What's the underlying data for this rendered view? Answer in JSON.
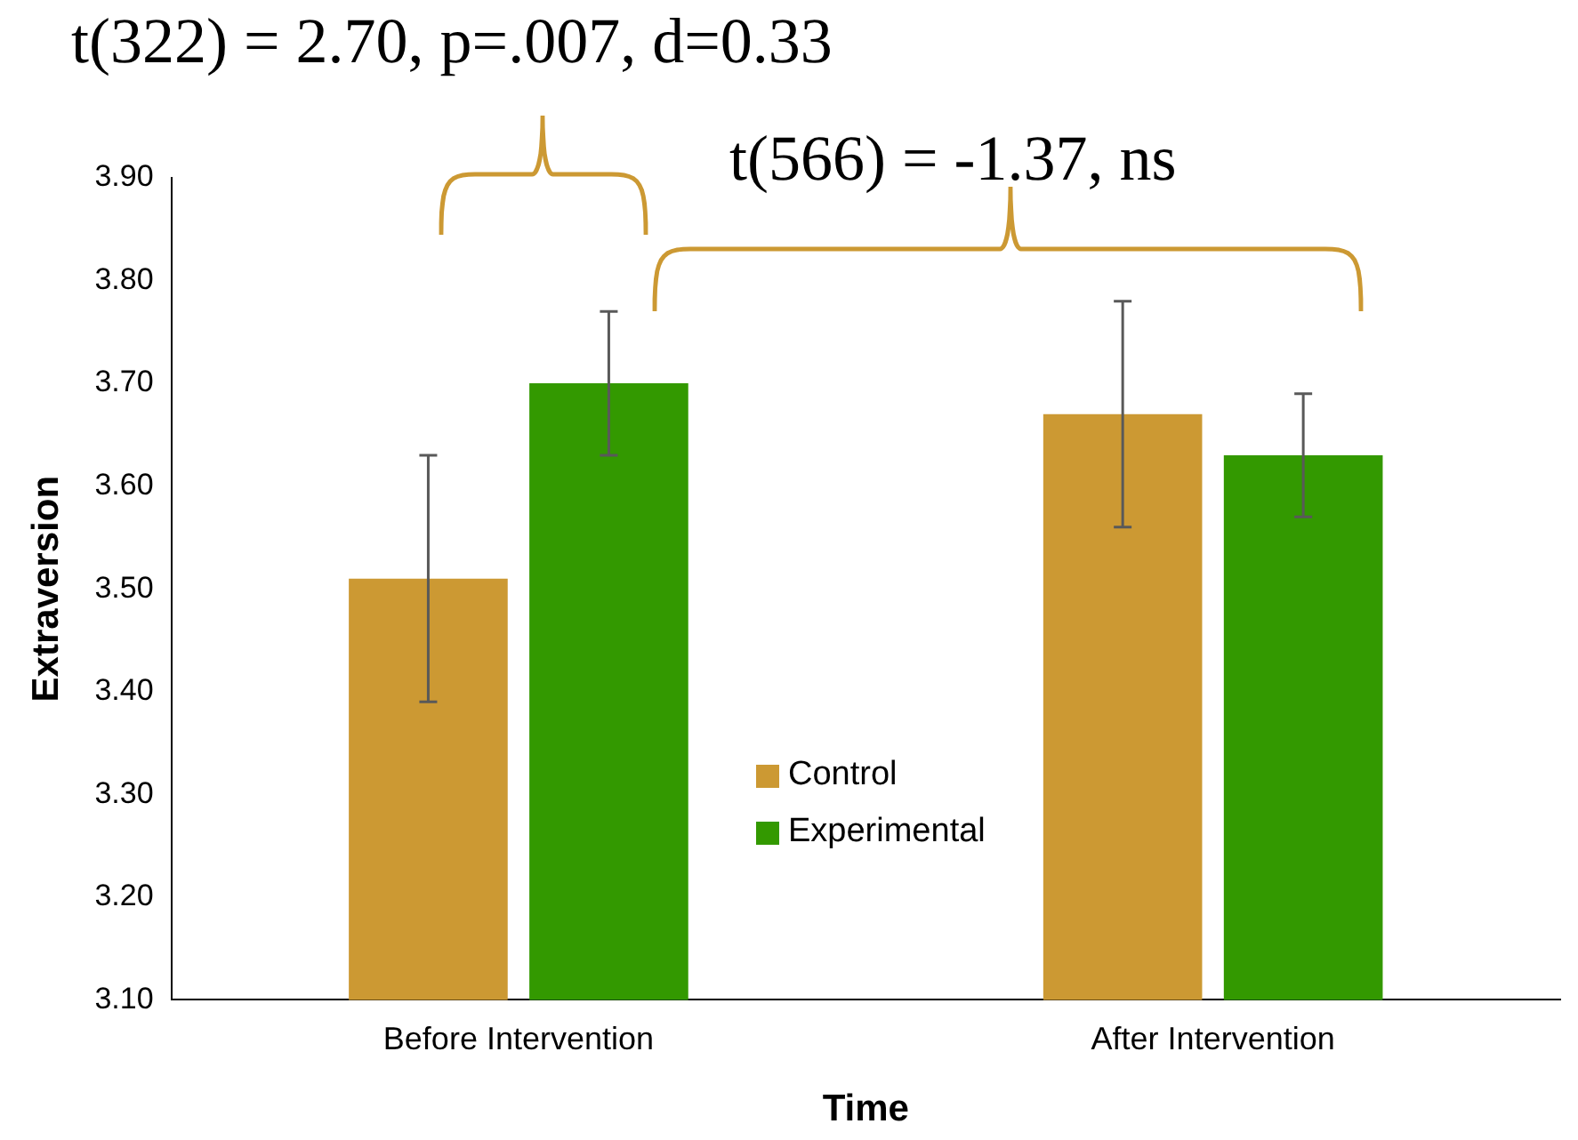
{
  "chart_data": {
    "type": "bar",
    "xlabel": "Time",
    "ylabel": "Extraversion",
    "categories": [
      "Before Intervention",
      "After Intervention"
    ],
    "series": [
      {
        "name": "Control",
        "color": "#cc9933",
        "values": [
          3.51,
          3.67
        ],
        "errors": [
          [
            3.39,
            3.63
          ],
          [
            3.56,
            3.78
          ]
        ]
      },
      {
        "name": "Experimental",
        "color": "#339900",
        "values": [
          3.7,
          3.63
        ],
        "errors": [
          [
            3.63,
            3.77
          ],
          [
            3.57,
            3.69
          ]
        ]
      }
    ],
    "ylim": [
      3.1,
      3.9
    ],
    "yticks": [
      {
        "value": 3.1,
        "label": "3.10"
      },
      {
        "value": 3.2,
        "label": "3.20"
      },
      {
        "value": 3.3,
        "label": "3.30"
      },
      {
        "value": 3.4,
        "label": "3.40"
      },
      {
        "value": 3.5,
        "label": "3.50"
      },
      {
        "value": 3.6,
        "label": "3.60"
      },
      {
        "value": 3.7,
        "label": "3.70"
      },
      {
        "value": 3.8,
        "label": "3.80"
      },
      {
        "value": 3.9,
        "label": "3.90"
      }
    ],
    "grid": false,
    "legend": "bottom",
    "annotations": [
      "t(322) = 2.70, p=.007, d=0.33",
      "t(566) = -1.37, ns"
    ]
  }
}
